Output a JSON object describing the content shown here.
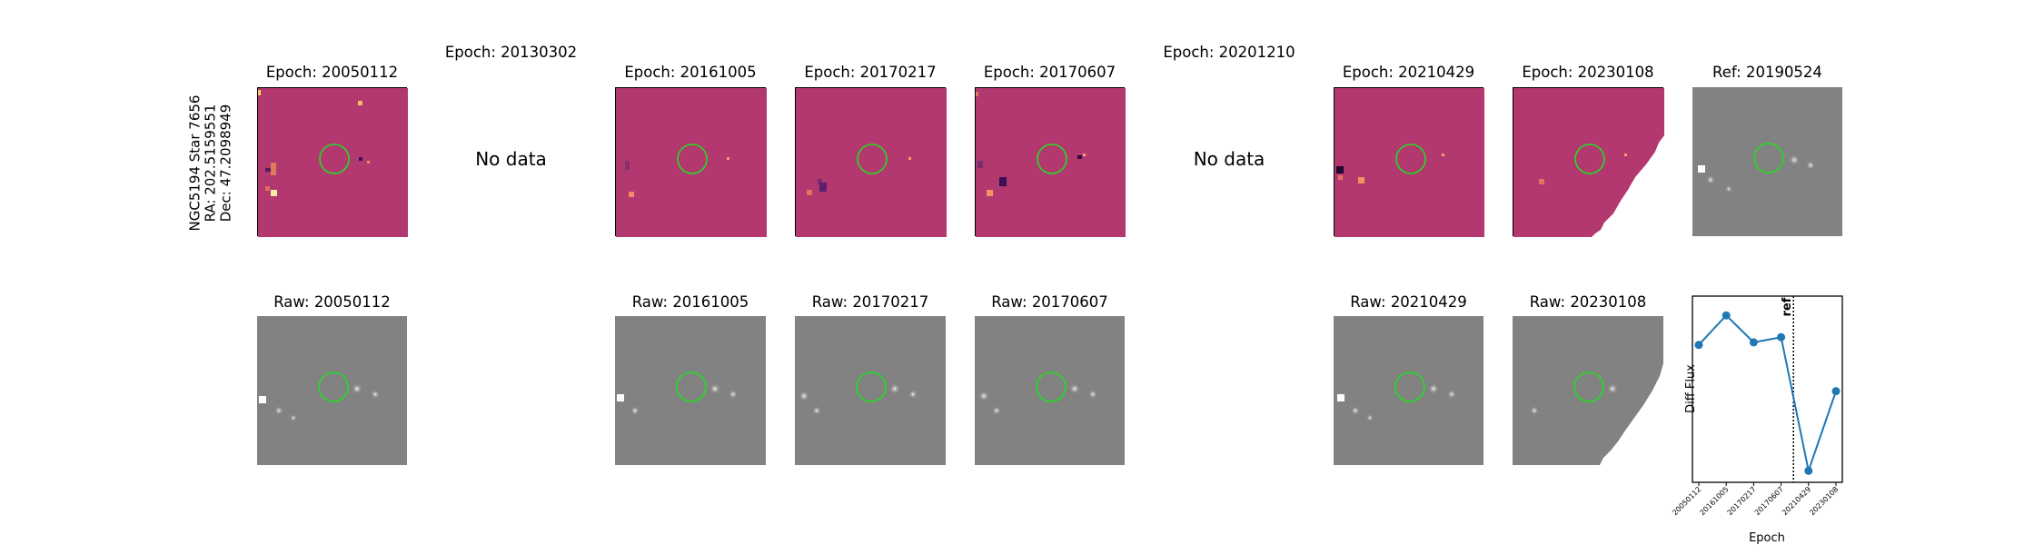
{
  "star_info": {
    "line1": "NGC5194 Star 7656",
    "line2": "RA: 202.5159551",
    "line3": "Dec: 47.2098949"
  },
  "diff_titles": {
    "e20050112": "Epoch: 20050112",
    "e20130302": "Epoch: 20130302",
    "e20161005": "Epoch: 20161005",
    "e20170217": "Epoch: 20170217",
    "e20170607": "Epoch: 20170607",
    "e20201210": "Epoch: 20201210",
    "e20210429": "Epoch: 20210429",
    "e20230108": "Epoch: 20230108",
    "ref": "Ref: 20190524"
  },
  "raw_titles": {
    "r20050112": "Raw: 20050112",
    "r20161005": "Raw: 20161005",
    "r20170217": "Raw: 20170217",
    "r20170607": "Raw: 20170607",
    "r20210429": "Raw: 20210429",
    "r20230108": "Raw: 20230108"
  },
  "no_data_label": "No data",
  "colors": {
    "diff_background": "#b2386f",
    "raw_background": "#828282",
    "aperture": "#22dd22",
    "line": "#1f77b4"
  },
  "chart_data": {
    "type": "line",
    "title": "",
    "xlabel": "Epoch",
    "ylabel": "Diff Flux",
    "categories": [
      "20050112",
      "20161005",
      "20170217",
      "20170607",
      "20210429",
      "20230108"
    ],
    "values": [
      0.62,
      0.85,
      0.64,
      0.68,
      -0.36,
      0.26
    ],
    "ylim": [
      -0.45,
      1.0
    ],
    "ref_line": {
      "position": 3.45,
      "label": "ref"
    },
    "grid": false
  }
}
